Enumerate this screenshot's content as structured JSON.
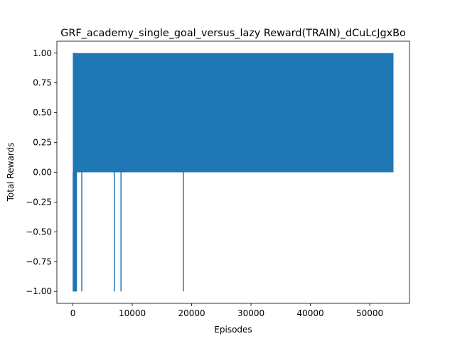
{
  "chart_data": {
    "type": "line",
    "title": "GRF_academy_single_goal_versus_lazy Reward(TRAIN)_dCuLcJgxBo",
    "xlabel": "Episodes",
    "ylabel": "Total Rewards",
    "xlim": [
      -2700,
      56700
    ],
    "ylim": [
      -1.1,
      1.1
    ],
    "xticks": [
      0,
      10000,
      20000,
      30000,
      40000,
      50000
    ],
    "xtick_labels": [
      "0",
      "10000",
      "20000",
      "30000",
      "40000",
      "50000"
    ],
    "yticks": [
      -1.0,
      -0.75,
      -0.5,
      -0.25,
      0.0,
      0.25,
      0.5,
      0.75,
      1.0
    ],
    "ytick_labels": [
      "−1.00",
      "−0.75",
      "−0.50",
      "−0.25",
      "0.00",
      "0.25",
      "0.50",
      "0.75",
      "1.00"
    ],
    "grid": false,
    "series": [
      {
        "color": "#1f77b4",
        "x_range": [
          0,
          54000
        ],
        "values": [
          0,
          1
        ],
        "dense_from": 200,
        "spikes_to_minus_one": [
          50,
          150,
          250,
          350,
          450,
          600,
          1500,
          7000,
          8100,
          18600
        ],
        "early_spikes_to_one": [
          80,
          180,
          260,
          320,
          400,
          520
        ]
      }
    ]
  }
}
